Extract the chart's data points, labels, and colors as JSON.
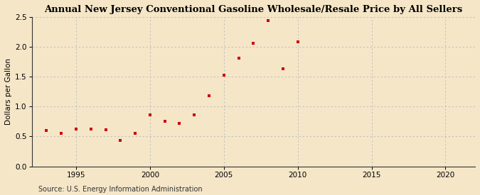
{
  "title": "Annual New Jersey Conventional Gasoline Wholesale/Resale Price by All Sellers",
  "ylabel": "Dollars per Gallon",
  "source": "Source: U.S. Energy Information Administration",
  "background_color": "#f5e6c8",
  "plot_bg_color": "#f5e6c8",
  "years": [
    1993,
    1994,
    1995,
    1996,
    1997,
    1998,
    1999,
    2000,
    2001,
    2002,
    2003,
    2004,
    2005,
    2006,
    2007,
    2008,
    2009,
    2010
  ],
  "values": [
    0.6,
    0.55,
    0.62,
    0.62,
    0.61,
    0.44,
    0.55,
    0.86,
    0.75,
    0.72,
    0.86,
    1.18,
    1.53,
    1.81,
    2.06,
    2.44,
    1.63,
    2.08
  ],
  "marker_color": "#cc0000",
  "marker": "s",
  "marker_size": 3.5,
  "xlim": [
    1992,
    2022
  ],
  "ylim": [
    0.0,
    2.5
  ],
  "xticks": [
    1995,
    2000,
    2005,
    2010,
    2015,
    2020
  ],
  "yticks": [
    0.0,
    0.5,
    1.0,
    1.5,
    2.0,
    2.5
  ],
  "grid_color": "#bbbbbb",
  "title_fontsize": 9.5,
  "label_fontsize": 7.5,
  "tick_fontsize": 7.5,
  "source_fontsize": 7.0
}
